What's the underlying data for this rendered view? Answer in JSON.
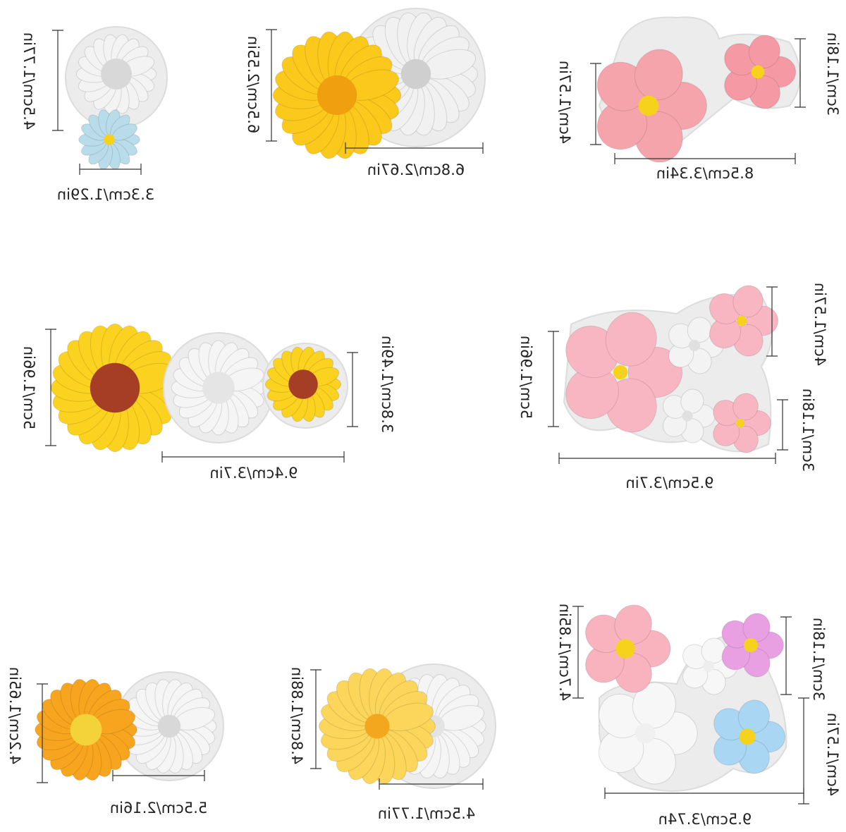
{
  "groups": [
    {
      "width_label": "3.3cm/1.29in",
      "height_labels": [
        "4.5cm/1.77in"
      ]
    },
    {
      "width_label": "6.8cm/2.67in",
      "height_labels": [
        "6.5cm/2.55in"
      ]
    },
    {
      "width_label": "8.5cm/3.34in",
      "height_labels": [
        "4cm/1.57in",
        "3cm/1.18in"
      ]
    },
    {
      "width_label": "9.4cm/3.7in",
      "height_labels": [
        "5cm/1.96in",
        "3.8cm/1.49in"
      ]
    },
    {
      "width_label": "9.5cm/3.7in",
      "height_labels": [
        "4cm/1.57in",
        "5cm/1.96in",
        "3cm/1.18in"
      ]
    },
    {
      "width_label": "5.5cm/2.16in",
      "height_labels": [
        "4.2cm/1.65in"
      ]
    },
    {
      "width_label": "4.5cm/1.77in",
      "height_labels": [
        "4.8cm/1.88in"
      ]
    },
    {
      "width_label": "9.5cm/3.74n",
      "height_labels": [
        "4.7cm/1.85in",
        "3cm/1.18in",
        "4cm/1.57in"
      ]
    }
  ]
}
